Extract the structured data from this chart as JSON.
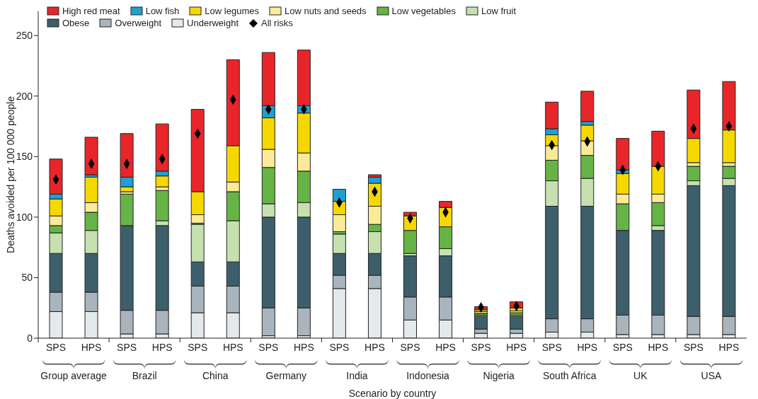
{
  "chart_data": {
    "type": "bar",
    "stacked": true,
    "xlabel": "Scenario by country",
    "ylabel": "Deaths avoided per 100 000 people",
    "categories": [
      "SPS",
      "HPS",
      "SPS",
      "HPS",
      "SPS",
      "HPS",
      "SPS",
      "HPS",
      "SPS",
      "HPS",
      "SPS",
      "HPS",
      "SPS",
      "HPS",
      "SPS",
      "HPS",
      "SPS",
      "HPS",
      "SPS",
      "HPS"
    ],
    "annotations": [
      "Group average",
      "Brazil",
      "China",
      "Germany",
      "India",
      "Indonesia",
      "Nigeria",
      "South Africa",
      "UK",
      "USA"
    ],
    "ylim": [
      0,
      270
    ],
    "yticks": [
      0,
      50,
      100,
      150,
      200,
      250
    ],
    "legend": "top left",
    "series": [
      {
        "name": "Underweight",
        "color": "#e4e9ec",
        "values": [
          22,
          22,
          3.5,
          3.5,
          21,
          21,
          2,
          2,
          41,
          41,
          15,
          15,
          4,
          4,
          5,
          5,
          3,
          3,
          3,
          3
        ]
      },
      {
        "name": "Overweight",
        "color": "#aab4bc",
        "values": [
          16,
          16,
          19.5,
          19.5,
          22,
          22,
          23,
          23,
          11,
          11,
          19,
          19,
          3.5,
          3.5,
          11,
          11,
          16,
          16,
          15,
          15
        ]
      },
      {
        "name": "Obese",
        "color": "#3d5f6b",
        "values": [
          32,
          32,
          70,
          70,
          20,
          20,
          75,
          75,
          18,
          18,
          34,
          34,
          10.5,
          10.5,
          93,
          93,
          70,
          70,
          108,
          108
        ]
      },
      {
        "name": "Low fruit",
        "color": "#c6e0b0",
        "values": [
          17,
          19,
          0,
          4,
          31,
          34,
          11,
          12,
          16,
          18,
          2,
          6,
          1,
          1,
          21,
          23,
          0,
          4,
          4,
          6
        ]
      },
      {
        "name": "Low vegetables",
        "color": "#66b445",
        "values": [
          6,
          15,
          26,
          25,
          1,
          24,
          30,
          26,
          2,
          6,
          19,
          18,
          1.5,
          2,
          17,
          19,
          22,
          19,
          12,
          10
        ]
      },
      {
        "name": "Low nuts and seeds",
        "color": "#fbeb98",
        "values": [
          8,
          8,
          2,
          3,
          7,
          8,
          15,
          15,
          14,
          15,
          null,
          0,
          1.5,
          1.5,
          12,
          12,
          8,
          7,
          3,
          3
        ]
      },
      {
        "name": "Low legumes",
        "color": "#f5d800",
        "values": [
          14,
          21,
          4,
          9,
          19,
          30,
          26,
          33,
          11,
          19,
          12,
          16,
          1.5,
          2.5,
          9,
          13,
          17,
          23,
          20,
          27
        ]
      },
      {
        "name": "Low fish",
        "color": "#1ea0d0",
        "values": [
          4,
          2,
          8,
          4,
          0,
          0,
          10,
          6,
          10,
          5,
          0,
          0,
          null,
          0,
          5,
          3,
          3,
          null,
          0,
          0
        ]
      },
      {
        "name": "High red meat",
        "color": "#e8262a",
        "values": [
          29,
          31,
          36,
          39,
          68,
          71,
          44,
          46,
          0,
          2,
          3,
          5,
          2.5,
          5,
          22,
          25,
          26,
          29,
          40,
          40
        ]
      },
      {
        "name": "All risks",
        "type": "scatter",
        "marker": "diamond",
        "color": "#000000",
        "values": [
          131,
          144,
          144,
          148,
          169,
          197,
          189,
          189,
          112,
          121,
          99,
          104,
          25.5,
          26.5,
          159.5,
          162.5,
          139,
          142,
          173,
          175
        ]
      }
    ]
  }
}
